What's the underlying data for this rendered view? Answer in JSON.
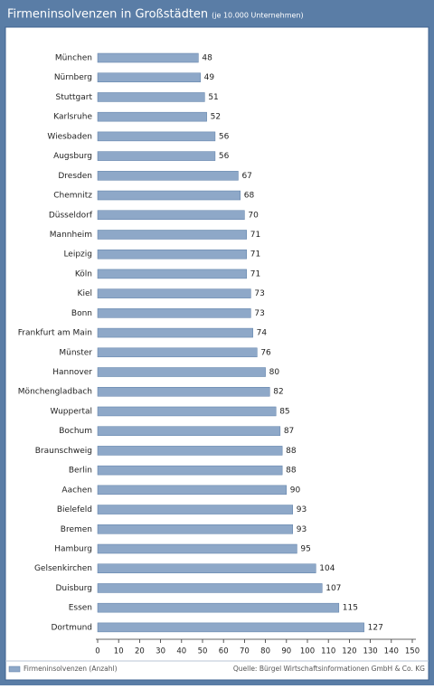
{
  "chart_data": {
    "type": "hbar",
    "title": "Firmeninsolvenzen in Großstädten",
    "subtitle": "(je 10.000 Unternehmen)",
    "categories": [
      "München",
      "Nürnberg",
      "Stuttgart",
      "Karlsruhe",
      "Wiesbaden",
      "Augsburg",
      "Dresden",
      "Chemnitz",
      "Düsseldorf",
      "Mannheim",
      "Leipzig",
      "Köln",
      "Kiel",
      "Bonn",
      "Frankfurt am Main",
      "Münster",
      "Hannover",
      "Mönchengladbach",
      "Wuppertal",
      "Bochum",
      "Braunschweig",
      "Berlin",
      "Aachen",
      "Bielefeld",
      "Bremen",
      "Hamburg",
      "Gelsenkirchen",
      "Duisburg",
      "Essen",
      "Dortmund"
    ],
    "series": [
      {
        "name": "Firmeninsolvenzen (Anzahl)",
        "color": "#8ea8c8",
        "values": [
          48,
          49,
          51,
          52,
          56,
          56,
          67,
          68,
          70,
          71,
          71,
          71,
          73,
          73,
          74,
          76,
          80,
          82,
          85,
          87,
          88,
          88,
          90,
          93,
          93,
          95,
          104,
          107,
          115,
          127
        ]
      }
    ],
    "xlim": [
      0,
      150
    ],
    "xticks": [
      0,
      10,
      20,
      30,
      40,
      50,
      60,
      70,
      80,
      90,
      100,
      110,
      120,
      130,
      140,
      150
    ],
    "source": "Quelle: Bürgel Wirtschaftsinformationen GmbH & Co. KG"
  }
}
